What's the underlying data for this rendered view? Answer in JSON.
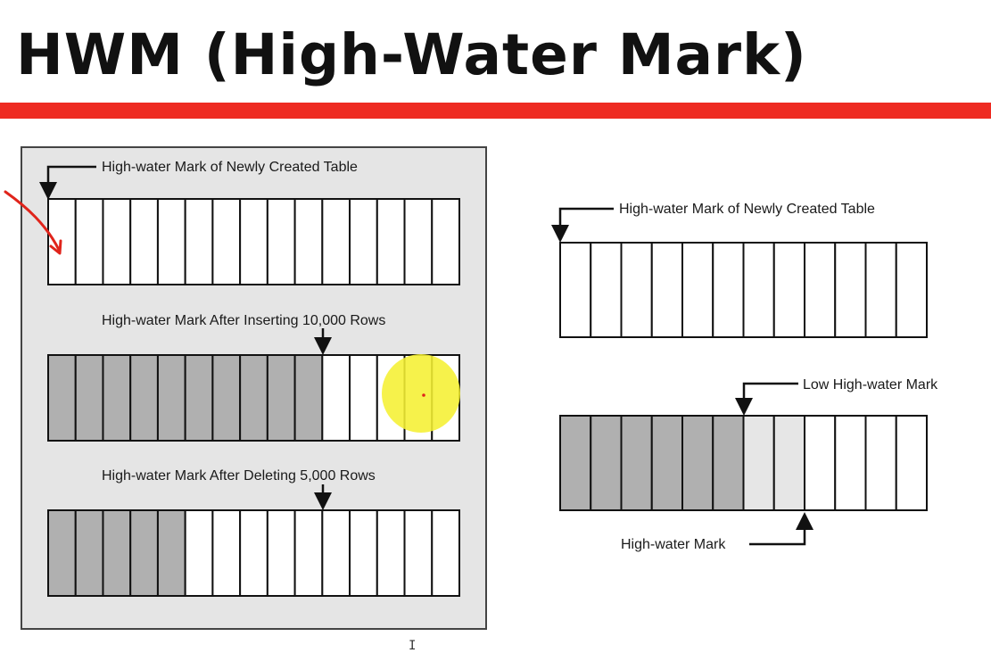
{
  "title": "HWM (High-Water Mark)",
  "colors": {
    "rule": "#ee2b22",
    "used_block": "#b0b0b0",
    "freed_block": "#e6e6e6",
    "empty_block": "#ffffff",
    "highlight": "#f5f032",
    "annotation": "#e0241b"
  },
  "left_panel": {
    "rows": [
      {
        "caption": "High-water Mark of Newly Created Table",
        "blocks": [
          "empty",
          "empty",
          "empty",
          "empty",
          "empty",
          "empty",
          "empty",
          "empty",
          "empty",
          "empty",
          "empty",
          "empty",
          "empty",
          "empty",
          "empty"
        ],
        "mark_after_block": 0
      },
      {
        "caption": "High-water Mark After Inserting 10,000 Rows",
        "blocks": [
          "used",
          "used",
          "used",
          "used",
          "used",
          "used",
          "used",
          "used",
          "used",
          "used",
          "empty",
          "empty",
          "empty",
          "empty",
          "empty"
        ],
        "mark_after_block": 10
      },
      {
        "caption": "High-water Mark After Deleting 5,000 Rows",
        "blocks": [
          "used",
          "used",
          "used",
          "used",
          "used",
          "empty",
          "empty",
          "empty",
          "empty",
          "empty",
          "empty",
          "empty",
          "empty",
          "empty",
          "empty"
        ],
        "mark_after_block": 10
      }
    ]
  },
  "right_panel": {
    "top": {
      "caption": "High-water Mark of Newly Created Table",
      "blocks": [
        "empty",
        "empty",
        "empty",
        "empty",
        "empty",
        "empty",
        "empty",
        "empty",
        "empty",
        "empty",
        "empty",
        "empty"
      ],
      "mark_after_block": 0
    },
    "bottom": {
      "blocks": [
        "used",
        "used",
        "used",
        "used",
        "used",
        "used",
        "freed",
        "freed",
        "empty",
        "empty",
        "empty",
        "empty"
      ],
      "low_mark_label": "Low High-water Mark",
      "low_mark_after_block": 6,
      "high_mark_label": "High-water Mark",
      "high_mark_after_block": 8
    }
  },
  "cursor_glyph": "I"
}
